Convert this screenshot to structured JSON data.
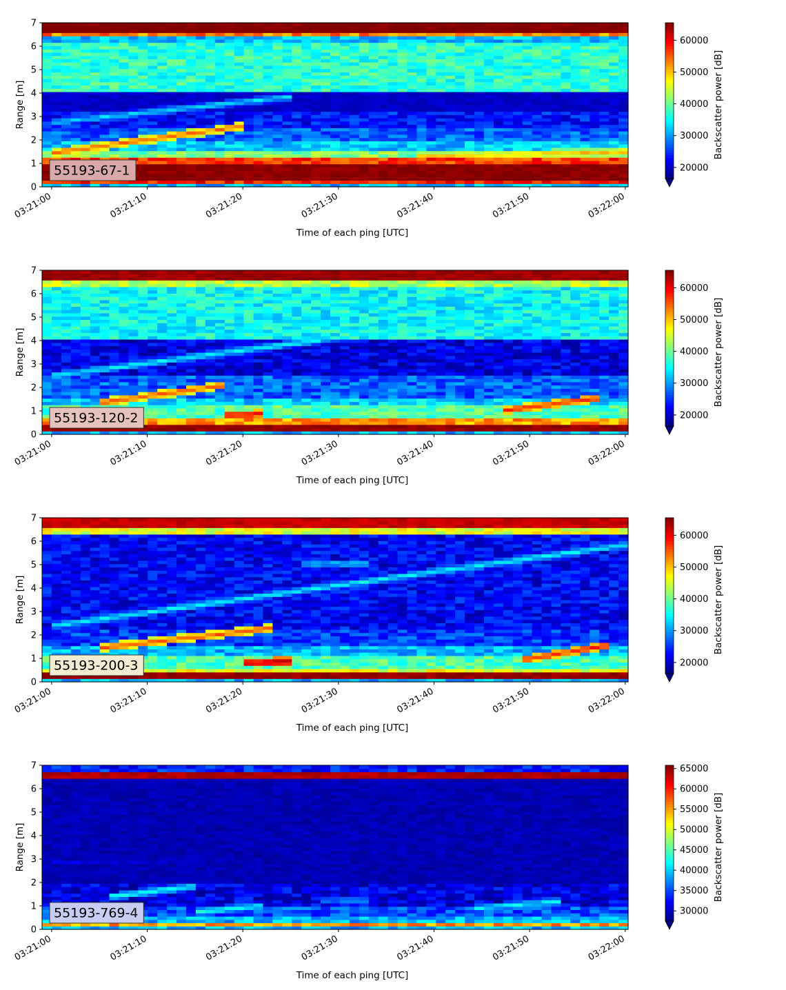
{
  "chart_data": [
    {
      "type": "heatmap",
      "annotation": "55193-67-1",
      "xlabel": "Time of each ping [UTC]",
      "ylabel": "Range [m]",
      "x_ticks": [
        "03:21:00",
        "03:21:10",
        "03:21:20",
        "03:21:30",
        "03:21:40",
        "03:21:50",
        "03:22:00"
      ],
      "x_range_seconds": [
        -1,
        60.3
      ],
      "y_ticks": [
        0,
        1,
        2,
        3,
        4,
        5,
        6,
        7
      ],
      "ylim": [
        0,
        7
      ],
      "colorbar": {
        "label": "Backscatter power [dB]",
        "colormap": "jet",
        "range": [
          16500,
          65500
        ],
        "ticks": [
          20000,
          30000,
          40000,
          50000,
          60000
        ],
        "extend": "min"
      },
      "badge_color": "#d9a8a8",
      "features": {
        "bands": [
          {
            "y0": 0.15,
            "y1": 0.25,
            "value": 0.85
          },
          {
            "y0": 0.25,
            "y1": 1.05,
            "value": 0.99
          },
          {
            "y0": 1.05,
            "y1": 1.3,
            "value": 0.82
          },
          {
            "y0": 1.3,
            "y1": 1.6,
            "value": 0.5
          },
          {
            "y0": 1.6,
            "y1": 2.0,
            "value": 0.32
          },
          {
            "y0": 2.0,
            "y1": 2.5,
            "value": 0.22
          },
          {
            "y0": 2.5,
            "y1": 3.2,
            "value": 0.14
          },
          {
            "y0": 3.2,
            "y1": 4.0,
            "value": 0.07
          },
          {
            "y0": 4.0,
            "y1": 6.2,
            "value": 0.42
          },
          {
            "y0": 6.2,
            "y1": 6.5,
            "value": 0.32
          },
          {
            "y0": 6.5,
            "y1": 6.6,
            "value": 0.75
          },
          {
            "y0": 6.6,
            "y1": 7.0,
            "value": 1.0
          }
        ],
        "tracks": [
          {
            "t0": 0,
            "t1": 20,
            "r0": 1.45,
            "r1": 2.6,
            "value": 0.78
          },
          {
            "t0": 0,
            "t1": 25,
            "r0": 2.75,
            "r1": 3.85,
            "value": 0.35
          },
          {
            "t0": 38,
            "t1": 60,
            "r0": 1.3,
            "r1": 1.5,
            "value": 0.7
          }
        ]
      }
    },
    {
      "type": "heatmap",
      "annotation": "55193-120-2",
      "xlabel": "Time of each ping [UTC]",
      "ylabel": "Range [m]",
      "x_ticks": [
        "03:21:00",
        "03:21:10",
        "03:21:20",
        "03:21:30",
        "03:21:40",
        "03:21:50",
        "03:22:00"
      ],
      "x_range_seconds": [
        -1,
        60.3
      ],
      "y_ticks": [
        0,
        1,
        2,
        3,
        4,
        5,
        6,
        7
      ],
      "ylim": [
        0,
        7
      ],
      "colorbar": {
        "label": "Backscatter power [dB]",
        "colormap": "jet",
        "range": [
          16500,
          65500
        ],
        "ticks": [
          20000,
          30000,
          40000,
          50000,
          60000
        ],
        "extend": "min"
      },
      "badge_color": "#e6c2bc",
      "features": {
        "bands": [
          {
            "y0": 0.1,
            "y1": 0.45,
            "value": 0.98
          },
          {
            "y0": 0.45,
            "y1": 0.65,
            "value": 0.72
          },
          {
            "y0": 0.65,
            "y1": 1.2,
            "value": 0.45
          },
          {
            "y0": 1.2,
            "y1": 1.6,
            "value": 0.33
          },
          {
            "y0": 1.6,
            "y1": 2.5,
            "value": 0.22
          },
          {
            "y0": 2.5,
            "y1": 4.0,
            "value": 0.1
          },
          {
            "y0": 4.0,
            "y1": 6.3,
            "value": 0.38
          },
          {
            "y0": 6.3,
            "y1": 6.55,
            "value": 0.55
          },
          {
            "y0": 6.55,
            "y1": 7.0,
            "value": 0.97
          }
        ],
        "tracks": [
          {
            "t0": 5,
            "t1": 18,
            "r0": 1.35,
            "r1": 2.1,
            "value": 0.8
          },
          {
            "t0": 0,
            "t1": 60,
            "r0": 2.5,
            "r1": 5.8,
            "value": 0.38
          },
          {
            "t0": 47,
            "t1": 57,
            "r0": 1.0,
            "r1": 1.55,
            "value": 0.85
          },
          {
            "t0": 18,
            "t1": 22,
            "r0": 0.8,
            "r1": 0.9,
            "value": 0.9
          }
        ]
      }
    },
    {
      "type": "heatmap",
      "annotation": "55193-200-3",
      "xlabel": "Time of each ping [UTC]",
      "ylabel": "Range [m]",
      "x_ticks": [
        "03:21:00",
        "03:21:10",
        "03:21:20",
        "03:21:30",
        "03:21:40",
        "03:21:50",
        "03:22:00"
      ],
      "x_range_seconds": [
        -1,
        60.3
      ],
      "y_ticks": [
        0,
        1,
        2,
        3,
        4,
        5,
        6,
        7
      ],
      "ylim": [
        0,
        7
      ],
      "colorbar": {
        "label": "Backscatter power [dB]",
        "colormap": "jet",
        "range": [
          16500,
          65500
        ],
        "ticks": [
          20000,
          30000,
          40000,
          50000,
          60000
        ],
        "extend": "min"
      },
      "badge_color": "#f2edd0",
      "features": {
        "bands": [
          {
            "y0": 0.1,
            "y1": 0.4,
            "value": 0.98
          },
          {
            "y0": 0.4,
            "y1": 0.6,
            "value": 0.6
          },
          {
            "y0": 0.6,
            "y1": 1.1,
            "value": 0.45
          },
          {
            "y0": 1.1,
            "y1": 1.6,
            "value": 0.3
          },
          {
            "y0": 1.6,
            "y1": 2.2,
            "value": 0.18
          },
          {
            "y0": 2.2,
            "y1": 6.3,
            "value": 0.12
          },
          {
            "y0": 6.3,
            "y1": 6.55,
            "value": 0.6
          },
          {
            "y0": 6.55,
            "y1": 7.0,
            "value": 0.93
          }
        ],
        "tracks": [
          {
            "t0": 5,
            "t1": 23,
            "r0": 1.45,
            "r1": 2.3,
            "value": 0.8
          },
          {
            "t0": 0,
            "t1": 60,
            "r0": 2.4,
            "r1": 5.85,
            "value": 0.38
          },
          {
            "t0": 26,
            "t1": 33,
            "r0": 5.05,
            "r1": 5.05,
            "value": 0.35
          },
          {
            "t0": 49,
            "t1": 58,
            "r0": 0.95,
            "r1": 1.55,
            "value": 0.85
          },
          {
            "t0": 20,
            "t1": 25,
            "r0": 0.8,
            "r1": 0.9,
            "value": 0.95
          }
        ]
      }
    },
    {
      "type": "heatmap",
      "annotation": "55193-769-4",
      "xlabel": "Time of each ping [UTC]",
      "ylabel": "Range [m]",
      "x_ticks": [
        "03:21:00",
        "03:21:10",
        "03:21:20",
        "03:21:30",
        "03:21:40",
        "03:21:50",
        "03:22:00"
      ],
      "x_range_seconds": [
        -1,
        60.3
      ],
      "y_ticks": [
        0,
        1,
        2,
        3,
        4,
        5,
        6,
        7
      ],
      "ylim": [
        0,
        7
      ],
      "colorbar": {
        "label": "Backscatter power [dB]",
        "colormap": "jet",
        "range": [
          27500,
          65800
        ],
        "ticks": [
          30000,
          35000,
          40000,
          45000,
          50000,
          55000,
          60000,
          65000
        ],
        "extend": "min"
      },
      "badge_color": "#c7cdf2",
      "features": {
        "bands": [
          {
            "y0": 0.12,
            "y1": 0.22,
            "value": 0.72
          },
          {
            "y0": 0.22,
            "y1": 0.3,
            "value": 0.95
          },
          {
            "y0": 0.3,
            "y1": 0.6,
            "value": 0.3
          },
          {
            "y0": 0.6,
            "y1": 0.95,
            "value": 0.2
          },
          {
            "y0": 0.95,
            "y1": 1.9,
            "value": 0.1
          },
          {
            "y0": 1.9,
            "y1": 6.4,
            "value": 0.05
          },
          {
            "y0": 6.4,
            "y1": 6.48,
            "value": 0.5
          },
          {
            "y0": 6.48,
            "y1": 6.72,
            "value": 0.95
          },
          {
            "y0": 6.72,
            "y1": 7.0,
            "value": 0.15
          }
        ],
        "tracks": [
          {
            "t0": 6,
            "t1": 15,
            "r0": 1.4,
            "r1": 1.85,
            "value": 0.4
          },
          {
            "t0": 0,
            "t1": 20,
            "r0": 2.9,
            "r1": 2.95,
            "value": 0.14
          },
          {
            "t0": 28,
            "t1": 33,
            "r0": 1.25,
            "r1": 1.25,
            "value": 0.3
          },
          {
            "t0": 44,
            "t1": 53,
            "r0": 0.9,
            "r1": 1.2,
            "value": 0.38
          },
          {
            "t0": 15,
            "t1": 22,
            "r0": 0.75,
            "r1": 1.0,
            "value": 0.4
          }
        ]
      }
    }
  ]
}
